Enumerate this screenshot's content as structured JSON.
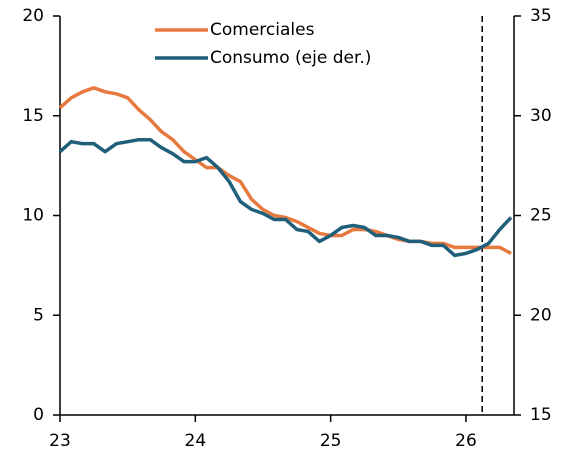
{
  "chart_data": {
    "type": "line",
    "x": [
      23,
      23.083,
      23.167,
      23.25,
      23.333,
      23.417,
      23.5,
      23.583,
      23.667,
      23.75,
      23.833,
      23.917,
      24,
      24.083,
      24.167,
      24.25,
      24.333,
      24.417,
      24.5,
      24.583,
      24.667,
      24.75,
      24.833,
      24.917,
      25,
      25.083,
      25.167,
      25.25,
      25.333,
      25.417,
      25.5,
      25.583,
      25.667,
      25.75,
      25.833,
      25.917,
      26,
      26.083,
      26.167,
      26.25,
      26.333
    ],
    "series": [
      {
        "name": "Comerciales",
        "color": "#e8793e",
        "axis": "y",
        "values": [
          15.4,
          15.9,
          16.2,
          16.4,
          16.2,
          16.1,
          15.9,
          15.3,
          14.8,
          14.2,
          13.8,
          13.2,
          12.8,
          12.4,
          12.4,
          12.0,
          11.7,
          10.8,
          10.3,
          10.0,
          9.9,
          9.7,
          9.4,
          9.1,
          9.0,
          9.0,
          9.3,
          9.3,
          9.2,
          9.0,
          8.8,
          8.7,
          8.7,
          8.6,
          8.6,
          8.4,
          8.4,
          8.4,
          8.4,
          8.4,
          8.1
        ]
      },
      {
        "name": "Consumo (eje der.)",
        "color": "#1f5f7a",
        "axis": "y2",
        "values": [
          28.2,
          28.7,
          28.6,
          28.6,
          28.2,
          28.6,
          28.7,
          28.8,
          28.8,
          28.4,
          28.1,
          27.7,
          27.7,
          27.9,
          27.4,
          26.7,
          25.7,
          25.3,
          25.1,
          24.8,
          24.8,
          24.3,
          24.2,
          23.7,
          24.0,
          24.4,
          24.5,
          24.4,
          24.0,
          24.0,
          23.9,
          23.7,
          23.7,
          23.5,
          23.5,
          23.0,
          23.1,
          23.3,
          23.6,
          24.3,
          24.9
        ]
      }
    ],
    "xlim": [
      23,
      26.355
    ],
    "xticks": [
      23,
      24,
      25,
      26
    ],
    "ylim": [
      0,
      20
    ],
    "yticks": [
      0,
      5,
      10,
      15,
      20
    ],
    "y2lim": [
      15,
      35
    ],
    "y2ticks": [
      15,
      20,
      25,
      30,
      35
    ],
    "vline_x": 26.12,
    "grid": false,
    "legend": "top"
  }
}
